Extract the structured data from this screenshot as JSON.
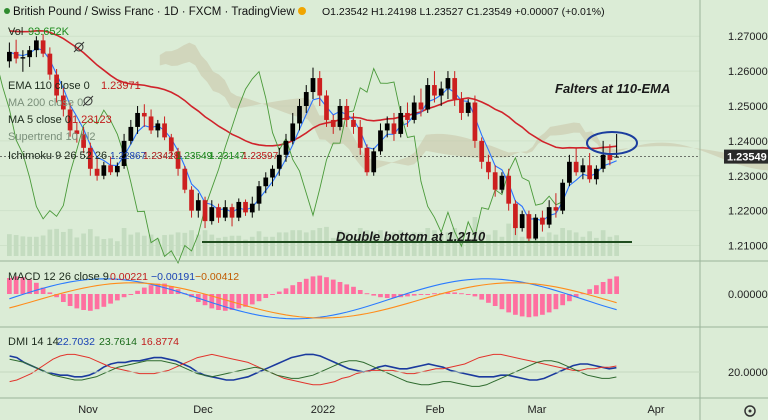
{
  "header": {
    "symbol": "British Pound / Swiss Franc · 1D · FXCM · TradingView",
    "ohlc": "O1.23542  H1.24198  L1.23527  C1.23549  +0.00007 (+0.01%)"
  },
  "legend": {
    "vol": "Vol",
    "vol_value": "93.652K",
    "ema_label": "EMA 110 close 0",
    "ema_value": "1.23971",
    "ma200_label": "MA 200 close 0",
    "ma5_label": "MA 5 close 0",
    "ma5_value": "1.23123",
    "supertrend_label": "Supertrend 10 hl2",
    "ichimoku_label": "Ichimoku 9 26 52 26",
    "ichimoku_values": [
      "1.22867",
      "1.23428",
      "1.23549",
      "1.23147",
      "1.23597"
    ],
    "macd_label": "MACD 12 26 close 9",
    "macd_values": [
      "0.00221",
      "−0.00191",
      "−0.00412"
    ],
    "dmi_label": "DMI 14 14",
    "dmi_values": [
      "22.7032",
      "23.7614",
      "16.8774"
    ]
  },
  "annotations": {
    "falters": "Falters at 110-EMA",
    "double_bottom": "Double bottom at 1.2110"
  },
  "price_axis": {
    "ticks": [
      "1.27000",
      "1.26000",
      "1.25000",
      "1.24000",
      "1.23000",
      "1.22000",
      "1.21000"
    ],
    "last_price": "1.23549"
  },
  "macd_axis": {
    "ticks": [
      "0.00000"
    ]
  },
  "dmi_axis": {
    "ticks": [
      "20.0000"
    ]
  },
  "time_axis": {
    "labels": [
      "Nov",
      "Dec",
      "2022",
      "Feb",
      "Mar",
      "Apr"
    ]
  },
  "colors": {
    "background": "#dbecd6",
    "up_candle": "#000000",
    "down_candle": "#cc1f1f",
    "ema110": "#d0232b",
    "ma5": "#2a72ff",
    "cloud": "#c9c4a8",
    "macd_line": "#2a7bff",
    "signal_line": "#ff8c1a",
    "histogram": "#ff6fa0",
    "dmi_plus": "#1b3a9e",
    "dmi_minus": "#e2342c",
    "adx": "#2f6b2f"
  },
  "icons": [
    "eye-slash-icon",
    "settings-icon"
  ],
  "chart_data": [
    {
      "type": "candlestick",
      "title": "British Pound / Swiss Franc · 1D · FXCM",
      "ylim": [
        1.207,
        1.2735
      ],
      "yticks": [
        1.27,
        1.26,
        1.25,
        1.24,
        1.23,
        1.22,
        1.21
      ],
      "last_close": 1.23549,
      "support_level": 1.211,
      "candles": [
        [
          1.2628,
          1.2682,
          1.261,
          1.2655
        ],
        [
          1.2655,
          1.269,
          1.2622,
          1.2636
        ],
        [
          1.2636,
          1.266,
          1.2598,
          1.264
        ],
        [
          1.264,
          1.2672,
          1.2612,
          1.266
        ],
        [
          1.266,
          1.27,
          1.264,
          1.2688
        ],
        [
          1.2688,
          1.2706,
          1.264,
          1.265
        ],
        [
          1.265,
          1.2668,
          1.2575,
          1.259
        ],
        [
          1.259,
          1.2606,
          1.251,
          1.253
        ],
        [
          1.253,
          1.2552,
          1.247,
          1.249
        ],
        [
          1.249,
          1.2508,
          1.2412,
          1.243
        ],
        [
          1.243,
          1.2452,
          1.2395,
          1.242
        ],
        [
          1.242,
          1.244,
          1.2365,
          1.238
        ],
        [
          1.238,
          1.2395,
          1.23,
          1.232
        ],
        [
          1.232,
          1.2348,
          1.2286,
          1.23
        ],
        [
          1.23,
          1.234,
          1.229,
          1.233
        ],
        [
          1.233,
          1.2355,
          1.2302,
          1.231
        ],
        [
          1.231,
          1.2338,
          1.2298,
          1.2328
        ],
        [
          1.2328,
          1.242,
          1.232,
          1.24
        ],
        [
          1.24,
          1.246,
          1.239,
          1.244
        ],
        [
          1.244,
          1.25,
          1.242,
          1.248
        ],
        [
          1.248,
          1.2505,
          1.244,
          1.247
        ],
        [
          1.247,
          1.249,
          1.242,
          1.243
        ],
        [
          1.243,
          1.246,
          1.241,
          1.245
        ],
        [
          1.245,
          1.247,
          1.2402,
          1.241
        ],
        [
          1.241,
          1.242,
          1.235,
          1.237
        ],
        [
          1.237,
          1.238,
          1.23,
          1.232
        ],
        [
          1.232,
          1.2328,
          1.225,
          1.226
        ],
        [
          1.226,
          1.227,
          1.218,
          1.22
        ],
        [
          1.22,
          1.225,
          1.218,
          1.223
        ],
        [
          1.223,
          1.224,
          1.215,
          1.217
        ],
        [
          1.217,
          1.223,
          1.216,
          1.221
        ],
        [
          1.221,
          1.222,
          1.2165,
          1.218
        ],
        [
          1.218,
          1.223,
          1.217,
          1.221
        ],
        [
          1.221,
          1.222,
          1.2155,
          1.218
        ],
        [
          1.218,
          1.2235,
          1.217,
          1.2225
        ],
        [
          1.2225,
          1.2232,
          1.2185,
          1.2195
        ],
        [
          1.2195,
          1.224,
          1.218,
          1.222
        ],
        [
          1.222,
          1.2285,
          1.22,
          1.227
        ],
        [
          1.227,
          1.231,
          1.225,
          1.2295
        ],
        [
          1.2295,
          1.233,
          1.227,
          1.232
        ],
        [
          1.232,
          1.238,
          1.23,
          1.236
        ],
        [
          1.236,
          1.242,
          1.234,
          1.24
        ],
        [
          1.24,
          1.248,
          1.239,
          1.245
        ],
        [
          1.245,
          1.252,
          1.243,
          1.25
        ],
        [
          1.25,
          1.256,
          1.248,
          1.254
        ],
        [
          1.254,
          1.261,
          1.252,
          1.258
        ],
        [
          1.258,
          1.26,
          1.25,
          1.253
        ],
        [
          1.253,
          1.2545,
          1.244,
          1.246
        ],
        [
          1.246,
          1.2475,
          1.242,
          1.244
        ],
        [
          1.244,
          1.252,
          1.243,
          1.25
        ],
        [
          1.25,
          1.252,
          1.244,
          1.246
        ],
        [
          1.246,
          1.248,
          1.242,
          1.244
        ],
        [
          1.244,
          1.246,
          1.236,
          1.238
        ],
        [
          1.238,
          1.239,
          1.23,
          1.231
        ],
        [
          1.231,
          1.238,
          1.23,
          1.237
        ],
        [
          1.237,
          1.245,
          1.236,
          1.243
        ],
        [
          1.243,
          1.247,
          1.241,
          1.245
        ],
        [
          1.245,
          1.248,
          1.24,
          1.242
        ],
        [
          1.242,
          1.25,
          1.241,
          1.248
        ],
        [
          1.248,
          1.251,
          1.244,
          1.246
        ],
        [
          1.246,
          1.253,
          1.245,
          1.251
        ],
        [
          1.251,
          1.255,
          1.247,
          1.249
        ],
        [
          1.249,
          1.258,
          1.248,
          1.256
        ],
        [
          1.256,
          1.26,
          1.251,
          1.253
        ],
        [
          1.253,
          1.257,
          1.25,
          1.255
        ],
        [
          1.255,
          1.26,
          1.252,
          1.258
        ],
        [
          1.258,
          1.26,
          1.25,
          1.252
        ],
        [
          1.252,
          1.254,
          1.246,
          1.248
        ],
        [
          1.248,
          1.252,
          1.247,
          1.251
        ],
        [
          1.251,
          1.253,
          1.238,
          1.24
        ],
        [
          1.24,
          1.241,
          1.232,
          1.234
        ],
        [
          1.234,
          1.236,
          1.229,
          1.231
        ],
        [
          1.231,
          1.233,
          1.224,
          1.226
        ],
        [
          1.226,
          1.231,
          1.225,
          1.23
        ],
        [
          1.23,
          1.232,
          1.22,
          1.222
        ],
        [
          1.222,
          1.223,
          1.213,
          1.215
        ],
        [
          1.215,
          1.22,
          1.214,
          1.219
        ],
        [
          1.219,
          1.22,
          1.211,
          1.212
        ],
        [
          1.212,
          1.219,
          1.2115,
          1.218
        ],
        [
          1.218,
          1.22,
          1.214,
          1.216
        ],
        [
          1.216,
          1.223,
          1.215,
          1.221
        ],
        [
          1.221,
          1.225,
          1.218,
          1.22
        ],
        [
          1.22,
          1.229,
          1.219,
          1.228
        ],
        [
          1.228,
          1.236,
          1.227,
          1.234
        ],
        [
          1.234,
          1.238,
          1.23,
          1.231
        ],
        [
          1.231,
          1.235,
          1.229,
          1.233
        ],
        [
          1.233,
          1.2365,
          1.228,
          1.229
        ],
        [
          1.229,
          1.233,
          1.2275,
          1.232
        ],
        [
          1.232,
          1.24,
          1.231,
          1.236
        ],
        [
          1.236,
          1.239,
          1.233,
          1.2345
        ],
        [
          1.23542,
          1.24198,
          1.23527,
          1.23549
        ]
      ]
    },
    {
      "type": "histogram",
      "name": "MACD 12 26 close 9",
      "values": [
        0.002,
        0.0022,
        0.0021,
        0.0018,
        0.0014,
        0.0008,
        0.0002,
        -0.0004,
        -0.001,
        -0.0015,
        -0.0018,
        -0.002,
        -0.0021,
        -0.0019,
        -0.0016,
        -0.0012,
        -0.0008,
        -0.0004,
        0.0,
        0.0004,
        0.0008,
        0.0011,
        0.0013,
        0.0013,
        0.001,
        0.0006,
        0.0001,
        -0.0004,
        -0.001,
        -0.0014,
        -0.0018,
        -0.002,
        -0.0021,
        -0.002,
        -0.0018,
        -0.0016,
        -0.0013,
        -0.0009,
        -0.0005,
        -0.0001,
        0.0003,
        0.0007,
        0.0011,
        0.0015,
        0.0019,
        0.0022,
        0.0023,
        0.0021,
        0.0018,
        0.0015,
        0.0012,
        0.0009,
        0.0005,
        0.0001,
        -0.0002,
        -0.0004,
        -0.0005,
        -0.0005,
        -0.0004,
        -0.0003,
        -0.0002,
        -0.0001,
        0.0,
        0.0001,
        0.0001,
        0.0002,
        0.0002,
        0.0001,
        0.0,
        -0.0003,
        -0.0007,
        -0.0011,
        -0.0015,
        -0.0019,
        -0.0023,
        -0.0026,
        -0.0028,
        -0.0029,
        -0.0028,
        -0.0026,
        -0.0023,
        -0.0019,
        -0.0014,
        -0.0009,
        -0.0004,
        0.0001,
        0.0006,
        0.0011,
        0.0015,
        0.0019,
        0.0022
      ]
    },
    {
      "type": "line",
      "name": "DMI 14 14",
      "yticks": [
        20
      ],
      "series": [
        {
          "name": "+DI",
          "values": [
            30,
            29,
            26,
            24,
            22,
            20,
            19,
            18,
            18,
            17,
            17,
            18,
            20,
            23,
            25,
            26,
            26,
            27,
            27,
            28,
            29,
            29,
            28,
            27,
            25,
            23,
            20,
            18,
            17,
            16,
            15,
            15,
            16,
            17,
            19,
            21,
            23,
            25,
            27,
            29,
            30,
            31,
            31,
            30,
            28,
            26,
            24,
            22,
            21,
            20,
            21,
            23,
            24,
            23,
            22,
            22,
            23,
            24,
            25,
            24,
            23,
            21,
            20,
            19,
            18,
            17,
            17,
            17,
            18,
            18,
            17,
            16,
            15,
            15,
            16,
            18,
            20,
            22,
            24,
            25,
            25,
            24,
            23,
            22,
            22.7032
          ]
        },
        {
          "name": "−DI",
          "values": [
            14,
            15,
            17,
            19,
            22,
            25,
            28,
            30,
            31,
            31,
            30,
            29,
            27,
            25,
            23,
            22,
            21,
            20,
            19,
            19,
            19,
            20,
            21,
            23,
            25,
            27,
            29,
            30,
            31,
            30,
            29,
            28,
            27,
            26,
            24,
            22,
            20,
            18,
            16,
            15,
            14,
            13,
            12,
            12,
            13,
            14,
            16,
            17,
            19,
            20,
            21,
            21,
            21,
            21,
            20,
            19,
            19,
            20,
            21,
            22,
            22,
            23,
            24,
            25,
            27,
            29,
            30,
            31,
            31,
            30,
            29,
            28,
            27,
            26,
            25,
            24,
            23,
            22,
            21,
            21,
            22,
            22,
            23,
            23,
            23.7614
          ]
        },
        {
          "name": "ADX",
          "values": [
            28,
            27,
            26,
            24,
            22,
            20,
            18,
            17,
            16,
            15,
            15,
            16,
            17,
            19,
            21,
            23,
            24,
            25,
            26,
            27,
            27,
            27,
            26,
            25,
            23,
            21,
            19,
            18,
            17,
            18,
            19,
            20,
            21,
            22,
            23,
            22,
            20,
            18,
            17,
            16,
            16,
            17,
            18,
            20,
            22,
            24,
            26,
            27,
            27,
            26,
            24,
            22,
            20,
            18,
            16,
            14,
            13,
            12,
            12,
            13,
            14,
            14,
            13,
            12,
            11,
            11,
            12,
            14,
            16,
            18,
            20,
            22,
            24,
            26,
            27,
            27,
            26,
            24,
            22,
            20,
            18,
            17,
            16,
            16,
            16.8774
          ]
        }
      ]
    }
  ]
}
